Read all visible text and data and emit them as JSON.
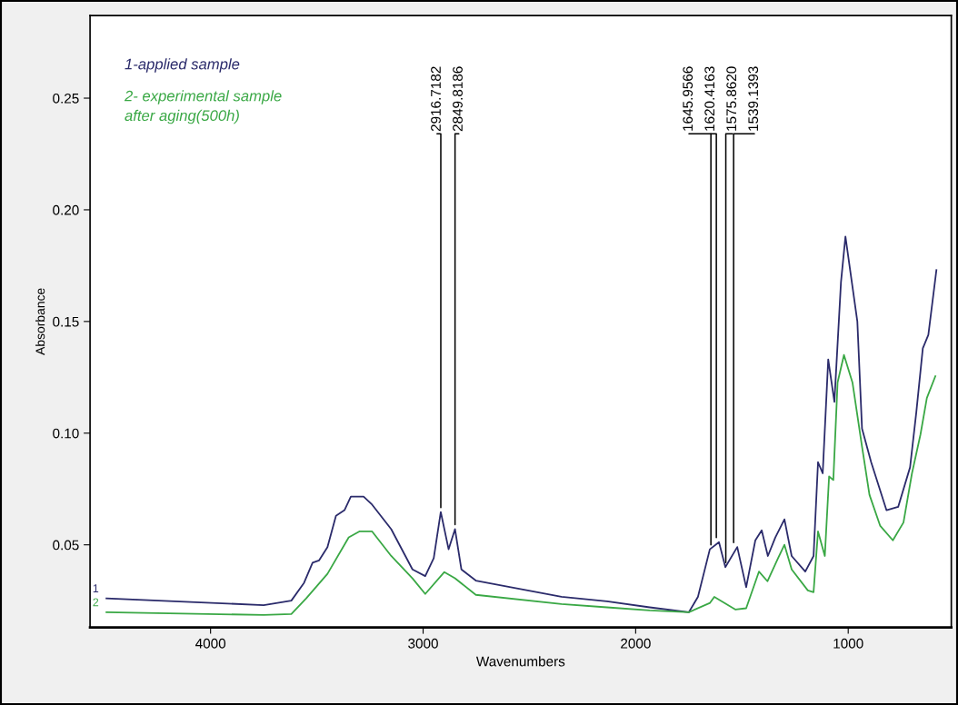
{
  "chart_data": {
    "type": "line",
    "xlabel": "Wavenumbers",
    "ylabel": "Absorbance",
    "xlim": [
      4567,
      515
    ],
    "ylim": [
      0.013,
      0.287
    ],
    "xticks": [
      4000,
      3000,
      2000,
      1000
    ],
    "yticks": [
      0.05,
      {
        "value": 0.1,
        "label": "0.10"
      },
      0.15,
      {
        "value": 0.2,
        "label": "0.20"
      },
      0.25
    ],
    "grid": false,
    "legend": "top left",
    "marker": "none",
    "line_style": "solid",
    "series": [
      {
        "name": "1-applied sample",
        "color": "#2b2b6b",
        "x": [
          4490,
          3750,
          3620,
          3560,
          3520,
          3490,
          3450,
          3410,
          3370,
          3340,
          3280,
          3240,
          3150,
          3050,
          2990,
          2950,
          2917,
          2880,
          2850,
          2820,
          2752,
          2349,
          2135,
          1934,
          1750,
          1707,
          1651,
          1608,
          1578,
          1522,
          1480,
          1437,
          1407,
          1378,
          1343,
          1300,
          1266,
          1202,
          1163,
          1142,
          1120,
          1094,
          1065,
          1034,
          1013,
          957,
          935,
          892,
          820,
          765,
          709,
          680,
          649,
          623,
          585
        ],
        "values": [
          0.026,
          0.023,
          0.025,
          0.033,
          0.042,
          0.043,
          0.049,
          0.063,
          0.0655,
          0.0716,
          0.0716,
          0.068,
          0.057,
          0.039,
          0.036,
          0.044,
          0.0647,
          0.048,
          0.057,
          0.039,
          0.034,
          0.0267,
          0.0247,
          0.022,
          0.0198,
          0.0267,
          0.048,
          0.0512,
          0.04,
          0.049,
          0.031,
          0.052,
          0.0565,
          0.045,
          0.0533,
          0.0614,
          0.045,
          0.038,
          0.045,
          0.087,
          0.082,
          0.133,
          0.114,
          0.1676,
          0.188,
          0.15,
          0.102,
          0.087,
          0.0655,
          0.067,
          0.0847,
          0.109,
          0.138,
          0.144,
          0.173
        ]
      },
      {
        "name": "2- experimental sample\nafter aging(500h)",
        "color": "#3aa845",
        "x": [
          4490,
          3750,
          3620,
          3550,
          3450,
          3350,
          3300,
          3240,
          3150,
          3050,
          2990,
          2900,
          2850,
          2752,
          2349,
          2135,
          1934,
          1750,
          1650,
          1630,
          1530,
          1480,
          1420,
          1380,
          1330,
          1300,
          1266,
          1190,
          1163,
          1142,
          1110,
          1090,
          1070,
          1050,
          1020,
          980,
          935,
          900,
          850,
          790,
          740,
          700,
          660,
          630,
          590
        ],
        "values": [
          0.0198,
          0.0186,
          0.019,
          0.026,
          0.037,
          0.0533,
          0.056,
          0.056,
          0.045,
          0.035,
          0.028,
          0.0378,
          0.035,
          0.0276,
          0.0235,
          0.022,
          0.0206,
          0.0198,
          0.024,
          0.0267,
          0.021,
          0.0216,
          0.038,
          0.0337,
          0.044,
          0.05,
          0.039,
          0.0296,
          0.0288,
          0.056,
          0.045,
          0.0806,
          0.079,
          0.1227,
          0.135,
          0.1227,
          0.094,
          0.0724,
          0.0586,
          0.052,
          0.06,
          0.082,
          0.0994,
          0.1157,
          0.1255
        ]
      }
    ],
    "annotations": [
      {
        "text": "2916.7182",
        "x": 2916.7182,
        "y": 0.0647
      },
      {
        "text": "2849.8186",
        "x": 2849.8186,
        "y": 0.057
      },
      {
        "text": "1645.9566",
        "x": 1645.9566,
        "y": 0.048
      },
      {
        "text": "1620.4163",
        "x": 1620.4163,
        "y": 0.0512
      },
      {
        "text": "1575.8620",
        "x": 1575.862,
        "y": 0.04
      },
      {
        "text": "1539.1393",
        "x": 1539.1393,
        "y": 0.049
      },
      {
        "text": "1",
        "x": 4490,
        "y": 0.026
      },
      {
        "text": "2",
        "x": 4490,
        "y": 0.0198
      }
    ]
  }
}
